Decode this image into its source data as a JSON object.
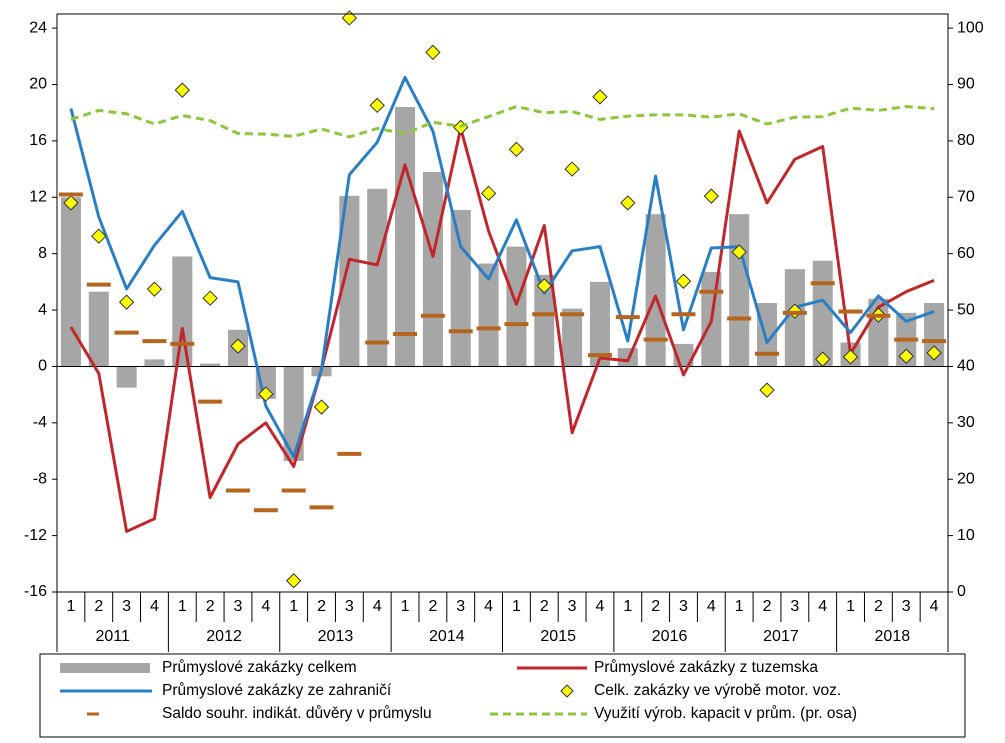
{
  "chart_data": {
    "type": "combo",
    "categories": [
      "1",
      "2",
      "3",
      "4",
      "1",
      "2",
      "3",
      "4",
      "1",
      "2",
      "3",
      "4",
      "1",
      "2",
      "3",
      "4",
      "1",
      "2",
      "3",
      "4",
      "1",
      "2",
      "3",
      "4",
      "1",
      "2",
      "3",
      "4",
      "1",
      "2",
      "3",
      "4"
    ],
    "groups": [
      "2011",
      "2012",
      "2013",
      "2014",
      "2015",
      "2016",
      "2017",
      "2018"
    ],
    "ylim": [
      -16,
      25
    ],
    "yticks": [
      -16,
      -12,
      -8,
      -4,
      0,
      4,
      8,
      12,
      16,
      20,
      24
    ],
    "y2lim": [
      0,
      102.5
    ],
    "y2ticks": [
      0,
      10,
      20,
      30,
      40,
      50,
      60,
      70,
      80,
      90,
      100
    ],
    "series": [
      {
        "name": "Průmyslové zakázky celkem",
        "mark": "bar",
        "color": "#a6a6a6",
        "values": [
          12.0,
          5.3,
          -1.5,
          0.5,
          7.8,
          0.2,
          2.6,
          -2.3,
          -6.7,
          -0.7,
          12.1,
          12.6,
          18.4,
          13.8,
          11.1,
          7.3,
          8.5,
          6.5,
          4.1,
          6.0,
          1.3,
          10.8,
          1.6,
          6.7,
          10.8,
          4.5,
          6.9,
          7.5,
          1.7,
          4.8,
          3.8,
          4.5
        ]
      },
      {
        "name": "Průmyslové zakázky z tuzemska",
        "mark": "line",
        "color": "#c0272d",
        "values": [
          2.8,
          -0.5,
          -11.7,
          -10.8,
          2.7,
          -9.3,
          -5.5,
          -4.0,
          -7.1,
          -0.2,
          7.6,
          7.2,
          14.3,
          7.8,
          16.9,
          9.6,
          4.4,
          10.0,
          -4.7,
          0.6,
          0.4,
          5.0,
          -0.6,
          3.2,
          16.7,
          11.6,
          14.7,
          15.6,
          0.9,
          4.2,
          5.3,
          6.1
        ]
      },
      {
        "name": "Průmyslové zakázky ze zahraničí",
        "mark": "line",
        "color": "#2a7ec6",
        "values": [
          18.3,
          10.6,
          5.5,
          8.6,
          11.0,
          6.3,
          6.0,
          -2.8,
          -6.4,
          -0.2,
          13.6,
          15.9,
          20.5,
          16.7,
          8.5,
          6.2,
          10.4,
          5.2,
          8.2,
          8.5,
          1.8,
          13.5,
          2.6,
          8.4,
          8.5,
          1.7,
          4.2,
          4.7,
          2.4,
          5.0,
          3.2,
          3.9
        ]
      },
      {
        "name": "Celk. zakázky ve výrobě motor. voz.",
        "mark": "diamond",
        "color": "#ffff00",
        "axis": "y2",
        "values": [
          69.0,
          63.1,
          51.4,
          53.7,
          89.0,
          52.1,
          43.6,
          35.1,
          2.0,
          32.8,
          101.8,
          86.3,
          null,
          95.7,
          82.4,
          70.7,
          78.5,
          54.3,
          75.0,
          87.8,
          69.0,
          null,
          55.1,
          70.2,
          60.3,
          35.8,
          49.8,
          41.3,
          41.7,
          49.1,
          41.8,
          42.4
        ]
      },
      {
        "name": "Saldo souhr. indikát. důvěry v průmyslu",
        "mark": "dash",
        "color": "#b5651d",
        "values": [
          12.2,
          5.8,
          2.4,
          1.8,
          1.6,
          -2.5,
          -8.8,
          -10.2,
          -8.8,
          -10.0,
          -6.2,
          1.7,
          2.3,
          3.6,
          2.5,
          2.7,
          3.0,
          3.7,
          3.7,
          0.8,
          3.5,
          1.9,
          3.7,
          5.3,
          3.4,
          0.9,
          3.8,
          5.9,
          3.9,
          3.6,
          1.9,
          1.8
        ]
      },
      {
        "name": "Využití výrob. kapacit v prům. (pr. osa)",
        "mark": "dashed-line",
        "color": "#8cc63f",
        "axis": "y2",
        "values": [
          83.8,
          85.4,
          84.8,
          83.0,
          84.5,
          83.6,
          81.3,
          81.2,
          80.8,
          82.1,
          80.7,
          82.2,
          81.3,
          83.3,
          82.6,
          84.3,
          86.1,
          85.0,
          85.2,
          83.8,
          84.4,
          84.6,
          84.6,
          84.2,
          84.8,
          83.0,
          84.2,
          84.3,
          85.8,
          85.4,
          86.1,
          85.7
        ]
      }
    ]
  }
}
